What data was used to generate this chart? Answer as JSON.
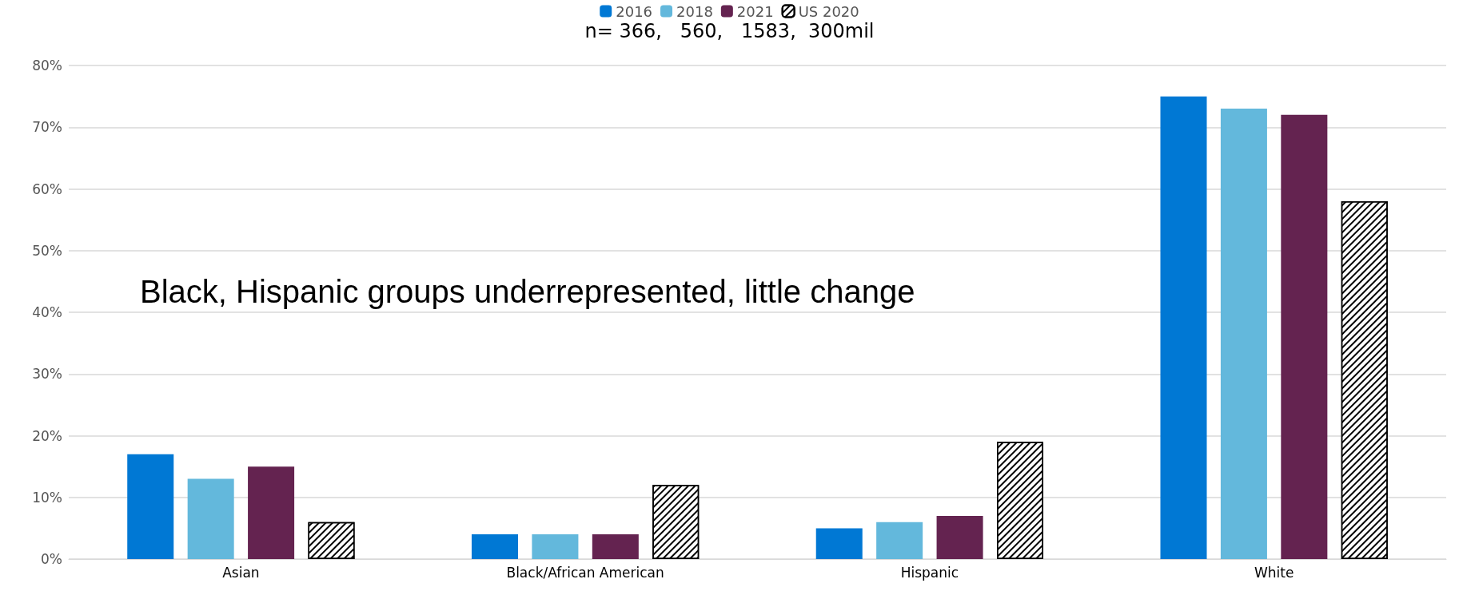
{
  "chart_data": {
    "type": "bar",
    "subtitle": "n= 366,   560,   1583,  300mil",
    "categories": [
      "Asian",
      "Black/African American",
      "Hispanic",
      "White"
    ],
    "series": [
      {
        "name": "2016",
        "color": "#0078d4",
        "values": [
          17,
          4,
          5,
          75
        ]
      },
      {
        "name": "2018",
        "color": "#63b8dc",
        "values": [
          13,
          4,
          6,
          73
        ]
      },
      {
        "name": "2021",
        "color": "#642350",
        "values": [
          15,
          4,
          7,
          72
        ]
      },
      {
        "name": "US 2020",
        "color": "#ffffff",
        "values": [
          6,
          12,
          19,
          58
        ]
      }
    ],
    "ylim": [
      0,
      80
    ],
    "yticks": [
      {
        "value": 0,
        "label": "0%"
      },
      {
        "value": 10,
        "label": "10%"
      },
      {
        "value": 20,
        "label": "20%"
      },
      {
        "value": 30,
        "label": "30%"
      },
      {
        "value": 40,
        "label": "40%"
      },
      {
        "value": 50,
        "label": "50%"
      },
      {
        "value": 60,
        "label": "60%"
      },
      {
        "value": 70,
        "label": "70%"
      },
      {
        "value": 80,
        "label": "80%"
      }
    ],
    "grid": "y",
    "legend": "top",
    "annotations": [
      "Black, Hispanic groups underrepresented, little change"
    ]
  }
}
